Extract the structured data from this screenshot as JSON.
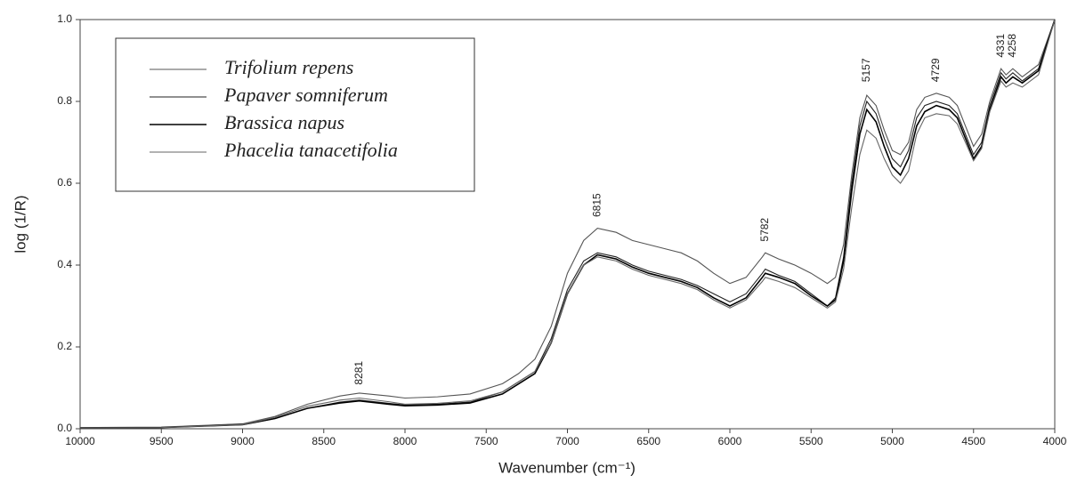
{
  "chart_data": {
    "type": "line",
    "xlabel": "Wavenumber (cm⁻¹)",
    "ylabel": "log (1/R)",
    "xlim": [
      10000,
      4000
    ],
    "ylim": [
      0,
      1
    ],
    "xticks": [
      10000,
      9500,
      9000,
      8500,
      8000,
      7500,
      7000,
      6500,
      6000,
      5500,
      5000,
      4500,
      4000
    ],
    "yticks": [
      {
        "value": 0,
        "label": "0.0"
      },
      0.2,
      0.4,
      0.6,
      0.8,
      {
        "value": 1,
        "label": "1.0"
      }
    ],
    "x": [
      10000,
      9500,
      9000,
      8800,
      8600,
      8400,
      8281,
      8100,
      8000,
      7800,
      7600,
      7400,
      7300,
      7200,
      7100,
      7000,
      6900,
      6815,
      6700,
      6600,
      6500,
      6400,
      6300,
      6200,
      6100,
      6000,
      5900,
      5800,
      5782,
      5700,
      5600,
      5500,
      5400,
      5350,
      5300,
      5250,
      5200,
      5157,
      5100,
      5050,
      5000,
      4950,
      4900,
      4850,
      4800,
      4729,
      4650,
      4600,
      4550,
      4500,
      4450,
      4400,
      4331,
      4300,
      4258,
      4200,
      4100,
      4000
    ],
    "series": [
      {
        "name": "Trifolium repens",
        "color": "#555555",
        "values": [
          0.003,
          0.004,
          0.012,
          0.03,
          0.06,
          0.08,
          0.087,
          0.08,
          0.075,
          0.078,
          0.085,
          0.11,
          0.135,
          0.17,
          0.25,
          0.38,
          0.46,
          0.49,
          0.48,
          0.46,
          0.45,
          0.44,
          0.43,
          0.41,
          0.38,
          0.355,
          0.37,
          0.42,
          0.43,
          0.415,
          0.4,
          0.38,
          0.355,
          0.37,
          0.45,
          0.62,
          0.76,
          0.815,
          0.79,
          0.73,
          0.68,
          0.67,
          0.7,
          0.78,
          0.81,
          0.82,
          0.81,
          0.79,
          0.74,
          0.69,
          0.72,
          0.8,
          0.88,
          0.865,
          0.88,
          0.86,
          0.89,
          1.0
        ]
      },
      {
        "name": "Papaver somniferum",
        "color": "#222222",
        "values": [
          0.002,
          0.003,
          0.01,
          0.025,
          0.05,
          0.065,
          0.07,
          0.062,
          0.058,
          0.06,
          0.065,
          0.09,
          0.115,
          0.14,
          0.22,
          0.34,
          0.41,
          0.43,
          0.42,
          0.4,
          0.385,
          0.375,
          0.365,
          0.35,
          0.33,
          0.31,
          0.33,
          0.38,
          0.39,
          0.375,
          0.36,
          0.33,
          0.3,
          0.32,
          0.42,
          0.6,
          0.74,
          0.8,
          0.77,
          0.71,
          0.66,
          0.64,
          0.68,
          0.76,
          0.79,
          0.8,
          0.79,
          0.77,
          0.72,
          0.67,
          0.7,
          0.79,
          0.87,
          0.855,
          0.87,
          0.85,
          0.88,
          1.0
        ]
      },
      {
        "name": "Brassica napus",
        "color": "#000000",
        "values": [
          0.002,
          0.003,
          0.01,
          0.025,
          0.05,
          0.063,
          0.068,
          0.06,
          0.056,
          0.058,
          0.063,
          0.085,
          0.11,
          0.135,
          0.21,
          0.33,
          0.4,
          0.425,
          0.415,
          0.395,
          0.38,
          0.37,
          0.36,
          0.345,
          0.32,
          0.3,
          0.32,
          0.37,
          0.38,
          0.37,
          0.355,
          0.325,
          0.3,
          0.315,
          0.41,
          0.58,
          0.72,
          0.78,
          0.75,
          0.69,
          0.64,
          0.62,
          0.66,
          0.74,
          0.775,
          0.79,
          0.78,
          0.76,
          0.71,
          0.66,
          0.69,
          0.78,
          0.86,
          0.845,
          0.86,
          0.845,
          0.875,
          1.0
        ]
      },
      {
        "name": "Phacelia tanacetifolia",
        "color": "#666666",
        "values": [
          0.002,
          0.003,
          0.01,
          0.028,
          0.055,
          0.07,
          0.075,
          0.066,
          0.06,
          0.062,
          0.068,
          0.09,
          0.115,
          0.14,
          0.21,
          0.33,
          0.4,
          0.42,
          0.41,
          0.39,
          0.375,
          0.365,
          0.355,
          0.34,
          0.315,
          0.295,
          0.315,
          0.36,
          0.37,
          0.36,
          0.345,
          0.32,
          0.295,
          0.31,
          0.39,
          0.54,
          0.67,
          0.73,
          0.71,
          0.66,
          0.62,
          0.6,
          0.63,
          0.72,
          0.76,
          0.77,
          0.765,
          0.745,
          0.7,
          0.655,
          0.685,
          0.775,
          0.85,
          0.835,
          0.845,
          0.835,
          0.865,
          1.0
        ]
      }
    ],
    "annotations": [
      {
        "text": "8281",
        "x": 8281,
        "y": 0.09
      },
      {
        "text": "6815",
        "x": 6815,
        "y": 0.5
      },
      {
        "text": "5782",
        "x": 5782,
        "y": 0.44
      },
      {
        "text": "5157",
        "x": 5157,
        "y": 0.83
      },
      {
        "text": "4729",
        "x": 4729,
        "y": 0.83
      },
      {
        "text": "4331",
        "x": 4331,
        "y": 0.89
      },
      {
        "text": "4258",
        "x": 4258,
        "y": 0.89
      }
    ]
  }
}
